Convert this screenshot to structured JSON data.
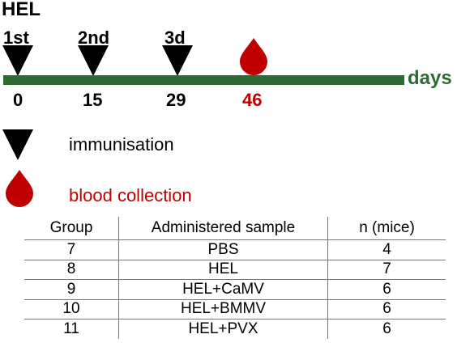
{
  "title": "HEL",
  "timeline": {
    "doses": [
      "1st",
      "2nd",
      "3d"
    ],
    "days": [
      "0",
      "15",
      "29",
      "46"
    ],
    "unit": "days"
  },
  "legend": {
    "immunisation": "immunisation",
    "blood_collection": "blood collection"
  },
  "colors": {
    "timeline_green": "#2e6b34",
    "blood_red": "#c00000",
    "marker_black": "#000000"
  },
  "table": {
    "headers": [
      "Group",
      "Administered sample",
      "n (mice)"
    ],
    "rows": [
      [
        "7",
        "PBS",
        "4"
      ],
      [
        "8",
        "HEL",
        "7"
      ],
      [
        "9",
        "HEL+CaMV",
        "6"
      ],
      [
        "10",
        "HEL+BMMV",
        "6"
      ],
      [
        "11",
        "HEL+PVX",
        "6"
      ]
    ]
  }
}
